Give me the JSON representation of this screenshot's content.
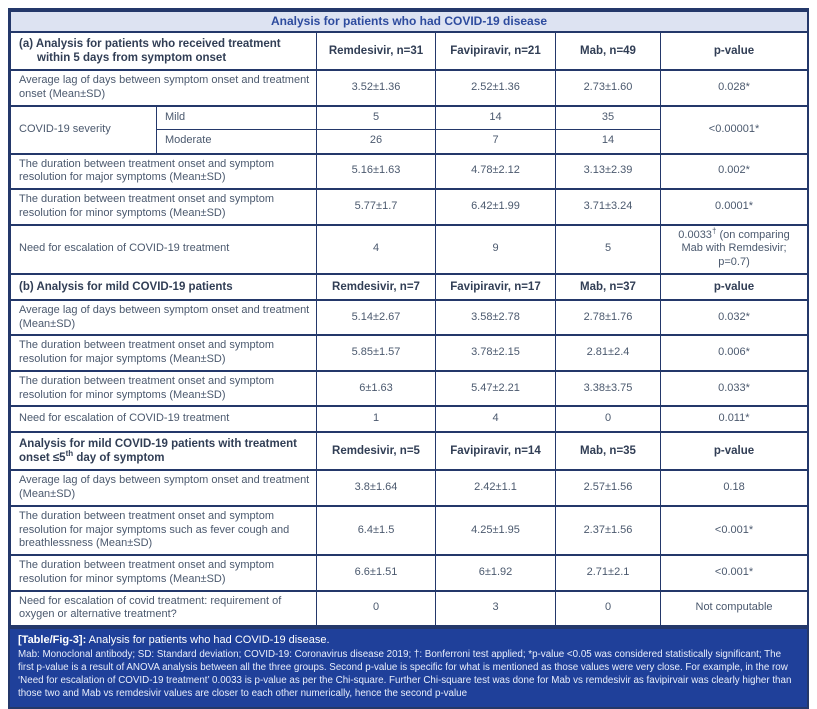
{
  "colors": {
    "title_bg": "#dde3f2",
    "title_text": "#2d4b9e",
    "border": "#24386a",
    "body_text": "#4b596e",
    "header_text": "#313e55",
    "footer_bg": "#1f409a",
    "footer_text": "#ffffff"
  },
  "title": "Analysis for patients who had COVID-19 disease",
  "sections": {
    "a": {
      "header": "(a) Analysis for patients who received treatment within 5 days from symptom onset",
      "columns": [
        "Remdesivir, n=31",
        "Favipiravir, n=21",
        "Mab, n=49",
        "p-value"
      ],
      "rows": [
        {
          "label": "Average lag of days between symptom onset and treatment onset (Mean±SD)",
          "remdesivir": "3.52±1.36",
          "favipiravir": "2.52±1.36",
          "mab": "2.73±1.60",
          "p_value": "0.028*"
        },
        {
          "label": "The duration between treatment onset and symptom resolution for major symptoms (Mean±SD)",
          "remdesivir": "5.16±1.63",
          "favipiravir": "4.78±2.12",
          "mab": "3.13±2.39",
          "p_value": "0.002*"
        },
        {
          "label": "The duration between treatment onset and symptom resolution for minor symptoms (Mean±SD)",
          "remdesivir": "5.77±1.7",
          "favipiravir": "6.42±1.99",
          "mab": "3.71±3.24",
          "p_value": "0.0001*"
        },
        {
          "label": "Need for escalation of COVID-19 treatment",
          "remdesivir": "4",
          "favipiravir": "9",
          "mab": "5",
          "p_main": "0.0033",
          "p_sup": "†",
          "p_rest": " (on comparing Mab with Remdesivir; p=0.7)"
        }
      ],
      "severity": {
        "label": "COVID-19 severity",
        "mild": {
          "label": "Mild",
          "remdesivir": "5",
          "favipiravir": "14",
          "mab": "35"
        },
        "moderate": {
          "label": "Moderate",
          "remdesivir": "26",
          "favipiravir": "7",
          "mab": "14"
        },
        "p_value": "<0.00001*"
      }
    },
    "b": {
      "header": "(b) Analysis for mild COVID-19 patients",
      "columns": [
        "Remdesivir, n=7",
        "Favipiravir, n=17",
        "Mab, n=37",
        "p-value"
      ],
      "rows": [
        {
          "label": "Average lag of days between symptom onset and treatment (Mean±SD)",
          "remdesivir": "5.14±2.67",
          "favipiravir": "3.58±2.78",
          "mab": "2.78±1.76",
          "p_value": "0.032*"
        },
        {
          "label": "The duration between treatment onset and symptom resolution for major symptoms (Mean±SD)",
          "remdesivir": "5.85±1.57",
          "favipiravir": "3.78±2.15",
          "mab": "2.81±2.4",
          "p_value": "0.006*"
        },
        {
          "label": "The duration between treatment onset and symptom resolution for minor symptoms (Mean±SD)",
          "remdesivir": "6±1.63",
          "favipiravir": "5.47±2.21",
          "mab": "3.38±3.75",
          "p_value": "0.033*"
        },
        {
          "label": "Need for escalation of COVID-19 treatment",
          "remdesivir": "1",
          "favipiravir": "4",
          "mab": "0",
          "p_value": "0.011*"
        }
      ]
    },
    "c": {
      "header_pre": "Analysis for mild COVID-19 patients with treatment onset ≤5",
      "header_sup": "th",
      "header_post": " day of symptom",
      "columns": [
        "Remdesivir, n=5",
        "Favipiravir, n=14",
        "Mab, n=35",
        "p-value"
      ],
      "rows": [
        {
          "label": "Average lag of days between symptom onset and treatment (Mean±SD)",
          "remdesivir": "3.8±1.64",
          "favipiravir": "2.42±1.1",
          "mab": "2.57±1.56",
          "p_value": "0.18"
        },
        {
          "label": "The duration between treatment onset and symptom resolution for major symptoms such as fever cough and breathlessness (Mean±SD)",
          "remdesivir": "6.4±1.5",
          "favipiravir": "4.25±1.95",
          "mab": "2.37±1.56",
          "p_value": "<0.001*"
        },
        {
          "label": "The duration between treatment onset and symptom resolution for minor symptoms (Mean±SD)",
          "remdesivir": "6.6±1.51",
          "favipiravir": "6±1.92",
          "mab": "2.71±2.1",
          "p_value": "<0.001*"
        },
        {
          "label": "Need for escalation of covid treatment: requirement of oxygen or alternative treatment?",
          "remdesivir": "0",
          "favipiravir": "3",
          "mab": "0",
          "p_value": "Not computable"
        }
      ]
    }
  },
  "caption": {
    "tag": "[Table/Fig-3]:",
    "text": " Analysis for patients who had COVID-19 disease.",
    "footnote": "Mab: Monoclonal antibody; SD: Standard deviation; COVID-19: Coronavirus disease 2019; †: Bonferroni test applied; *p-value <0.05 was considered statistically significant; The first p-value is a result of ANOVA analysis between all the three groups. Second p-value is specific for what is mentioned as those values were very close. For example, in the row ‘Need for escalation of COVID-19 treatment’ 0.0033 is p-value as per the Chi-square. Further Chi-square test was done for Mab vs remdesivir as favipirvair was clearly higher than those two and Mab vs remdesivir values are closer to each other numerically, hence the second p-value"
  }
}
